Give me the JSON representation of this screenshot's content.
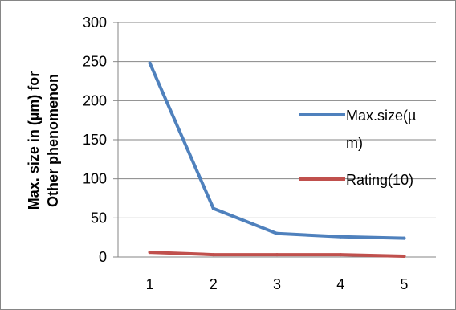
{
  "chart_data": {
    "type": "line",
    "title": "",
    "xlabel": "",
    "ylabel_lines": [
      "Max. size in (µm) for",
      "Other phenomenon"
    ],
    "categories": [
      "1",
      "2",
      "3",
      "4",
      "5"
    ],
    "ylim": [
      0,
      300
    ],
    "yticks": [
      0,
      50,
      100,
      150,
      200,
      250,
      300
    ],
    "grid": "horizontal",
    "legend": "right",
    "series": [
      {
        "name": "Max.size(µm)",
        "name_lines": [
          "Max.size(µ",
          "m)"
        ],
        "color": "#4F81BD",
        "values": [
          248,
          62,
          30,
          26,
          24
        ]
      },
      {
        "name": "Rating(10)",
        "name_lines": [
          "Rating(10)"
        ],
        "color": "#C0504D",
        "values": [
          6,
          3,
          3,
          3,
          1
        ]
      }
    ]
  }
}
